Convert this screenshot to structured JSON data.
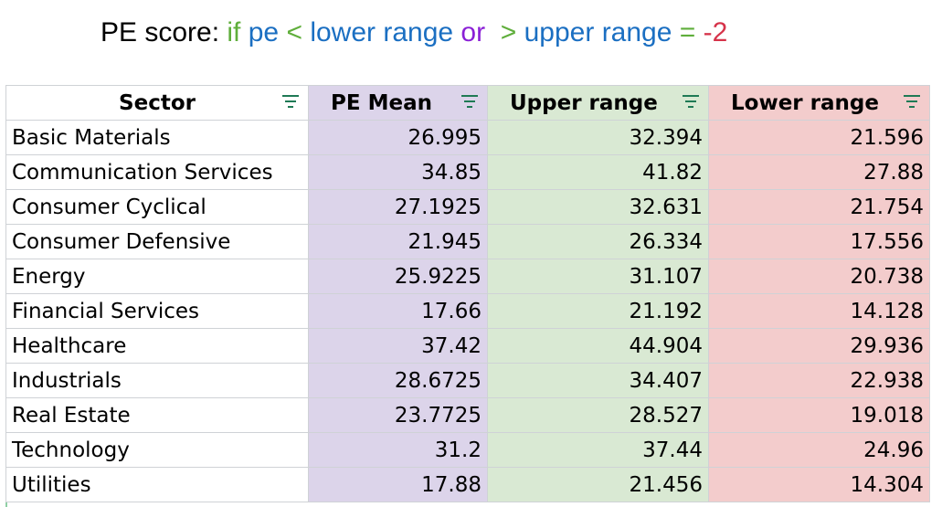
{
  "title": {
    "segments": [
      {
        "text": "PE score: ",
        "color": "#000000"
      },
      {
        "text": "if ",
        "color": "#5fae3b"
      },
      {
        "text": "pe ",
        "color": "#1b6fc2"
      },
      {
        "text": "< ",
        "color": "#5fae3b"
      },
      {
        "text": "lower range ",
        "color": "#1b6fc2"
      },
      {
        "text": "or ",
        "color": "#8a1fd6"
      },
      {
        "text": " > ",
        "color": "#5fae3b"
      },
      {
        "text": "upper range ",
        "color": "#1b6fc2"
      },
      {
        "text": "= ",
        "color": "#5fae3b"
      },
      {
        "text": "-2",
        "color": "#d6334a"
      }
    ]
  },
  "table": {
    "headers": [
      "Sector",
      "PE Mean",
      "Upper range",
      "Lower range"
    ],
    "filter_icon": "filter-icon",
    "column_colors": {
      "sector": "#ffffff",
      "pe_mean": "#dcd4ea",
      "upper_range": "#d9e9d3",
      "lower_range": "#f3cccc"
    },
    "rows": [
      {
        "sector": "Basic Materials",
        "pe_mean": "26.995",
        "upper": "32.394",
        "lower": "21.596"
      },
      {
        "sector": "Communication Services",
        "pe_mean": "34.85",
        "upper": "41.82",
        "lower": "27.88"
      },
      {
        "sector": "Consumer Cyclical",
        "pe_mean": "27.1925",
        "upper": "32.631",
        "lower": "21.754"
      },
      {
        "sector": "Consumer Defensive",
        "pe_mean": "21.945",
        "upper": "26.334",
        "lower": "17.556"
      },
      {
        "sector": "Energy",
        "pe_mean": "25.9225",
        "upper": "31.107",
        "lower": "20.738"
      },
      {
        "sector": "Financial Services",
        "pe_mean": "17.66",
        "upper": "21.192",
        "lower": "14.128"
      },
      {
        "sector": "Healthcare",
        "pe_mean": "37.42",
        "upper": "44.904",
        "lower": "29.936"
      },
      {
        "sector": "Industrials",
        "pe_mean": "28.6725",
        "upper": "34.407",
        "lower": "22.938"
      },
      {
        "sector": "Real Estate",
        "pe_mean": "23.7725",
        "upper": "28.527",
        "lower": "19.018"
      },
      {
        "sector": "Technology",
        "pe_mean": "31.2",
        "upper": "37.44",
        "lower": "24.96"
      },
      {
        "sector": "Utilities",
        "pe_mean": "17.88",
        "upper": "21.456",
        "lower": "14.304"
      }
    ]
  }
}
